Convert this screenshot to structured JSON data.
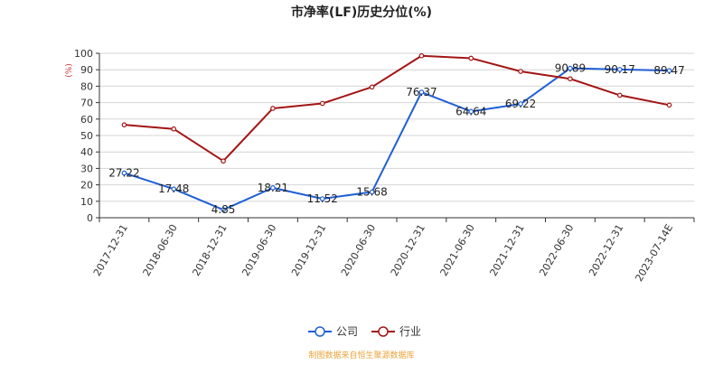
{
  "chart_data": {
    "type": "line",
    "title": "市净率(LF)历史分位(%)",
    "ylabel": "(%)",
    "xlabel": "",
    "ylim": [
      0,
      100
    ],
    "yticks": [
      0,
      10,
      20,
      30,
      40,
      50,
      60,
      70,
      80,
      90,
      100
    ],
    "grid": true,
    "legend_position": "bottom",
    "categories": [
      "2017-12-31",
      "2018-06-30",
      "2018-12-31",
      "2019-06-30",
      "2019-12-31",
      "2020-06-30",
      "2020-12-31",
      "2021-06-30",
      "2021-12-31",
      "2022-06-30",
      "2022-12-31",
      "2023-07-14E"
    ],
    "series": [
      {
        "name": "公司",
        "color": "#1f5fd6",
        "values": [
          27.22,
          17.48,
          4.85,
          18.21,
          11.52,
          15.68,
          76.37,
          64.64,
          69.22,
          90.89,
          90.17,
          89.47
        ],
        "labels": [
          "27.22",
          "17.48",
          "4.85",
          "18.21",
          "11.52",
          "15.68",
          "76.37",
          "64.64",
          "69.22",
          "90.89",
          "90.17",
          "89.47"
        ]
      },
      {
        "name": "行业",
        "color": "#a31515",
        "values": [
          56.5,
          54,
          34.5,
          66.5,
          69.5,
          79.5,
          98.5,
          97,
          89,
          84.5,
          74.5,
          68.5
        ]
      }
    ]
  },
  "footer": {
    "source": "制图数据来自恒生聚源数据库",
    "source_color": "#e8a33a"
  }
}
